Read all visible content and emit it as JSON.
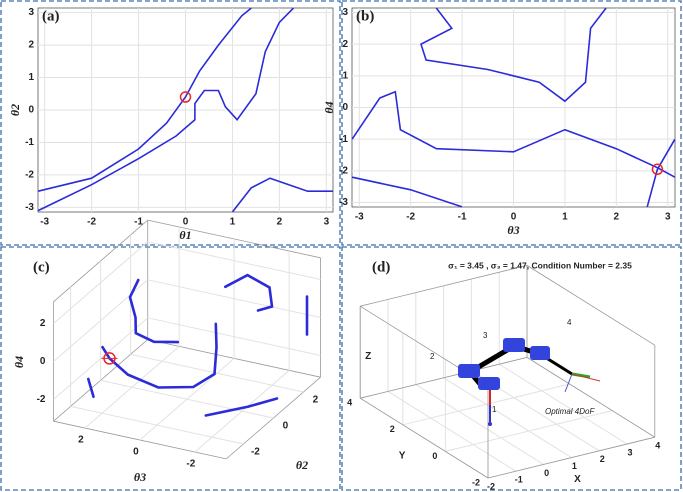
{
  "chart_data": [
    {
      "type": "line",
      "panel_label": "(a)",
      "xlabel": "θ1",
      "ylabel": "θ2",
      "grid": true,
      "color": "#2b2bd9",
      "xlim": [
        -3.1416,
        3.1416
      ],
      "ylim": [
        -3.1416,
        3.1416
      ],
      "xticks": [
        -3,
        -2,
        -1,
        0,
        1,
        2,
        3
      ],
      "yticks": [
        -3,
        -2,
        -1,
        0,
        1,
        2,
        3
      ],
      "series": [
        {
          "x": [
            -3.14,
            -2,
            -1,
            -0.4,
            0,
            0.3,
            0.7,
            1.2,
            1.4
          ],
          "values": [
            -2.5,
            -2.1,
            -1.2,
            -0.4,
            0.4,
            1.2,
            2,
            2.9,
            3.14
          ]
        },
        {
          "x": [
            -3.14,
            -2,
            -1,
            -0.2,
            0.2,
            0.2,
            0.4,
            0.7,
            0.85,
            1.1,
            1.5,
            1.7,
            2,
            2.3
          ],
          "values": [
            -3.1,
            -2.3,
            -1.5,
            -0.8,
            -0.3,
            0.2,
            0.6,
            0.6,
            0.1,
            -0.3,
            0.5,
            1.8,
            2.7,
            3.14
          ]
        },
        {
          "x": [
            1,
            1.4,
            1.8,
            2.2,
            2.6,
            3.14
          ],
          "values": [
            -3.14,
            -2.4,
            -2.1,
            -2.3,
            -2.5,
            -2.5
          ]
        }
      ],
      "highlight": {
        "x": 0,
        "y": 0.4,
        "color": "#e8262a"
      }
    },
    {
      "type": "line",
      "panel_label": "(b)",
      "xlabel": "θ3",
      "ylabel": "θ4",
      "grid": true,
      "color": "#2b2bd9",
      "xlim": [
        -3.1416,
        3.1416
      ],
      "ylim": [
        -3.1416,
        3.1416
      ],
      "xticks": [
        -3,
        -2,
        -1,
        0,
        1,
        2,
        3
      ],
      "yticks": [
        -3,
        -2,
        -1,
        0,
        1,
        2,
        3
      ],
      "series": [
        {
          "x": [
            -1.5,
            -1.2,
            -1.8,
            -1.7,
            -0.5,
            0.5,
            1,
            1.4,
            1.5,
            1.8
          ],
          "values": [
            3.14,
            2.5,
            2,
            1.5,
            1.2,
            0.8,
            0.2,
            0.8,
            2.5,
            3.14
          ]
        },
        {
          "x": [
            -3.14,
            -2.6,
            -2.3,
            -2.2,
            -1.5,
            0,
            1,
            2,
            2.8,
            3.14
          ],
          "values": [
            -1,
            0.3,
            0.5,
            -0.7,
            -1.3,
            -1.4,
            -0.7,
            -1.3,
            -1.9,
            -2.2
          ]
        },
        {
          "x": [
            -3.14,
            -2,
            -1
          ],
          "values": [
            -2.2,
            -2.6,
            -3.14
          ]
        },
        {
          "x": [
            2.6,
            2.8,
            3.14
          ],
          "values": [
            -3.14,
            -1.95,
            -1
          ]
        }
      ],
      "highlight": {
        "x": 2.8,
        "y": -1.95,
        "color": "#e8262a"
      }
    },
    {
      "type": "line3d",
      "panel_label": "(c)",
      "xlabel": "θ3",
      "ylabel": "θ2",
      "zlabel": "θ4",
      "grid": true,
      "color": "#2b2bd9",
      "xlim": [
        -3.1416,
        3.1416
      ],
      "ylim": [
        -3.1416,
        3.1416
      ],
      "zlim": [
        -3.1416,
        3.1416
      ],
      "xticks": [
        2,
        0,
        -2
      ],
      "yticks": [
        -2,
        0,
        2
      ],
      "zticks": [
        -2,
        0,
        2
      ],
      "series": [
        {
          "x": [
            1.5,
            1.8,
            1.6,
            1.7,
            1.2,
            0.5
          ],
          "y": [
            -0.5,
            -0.5,
            -0.5,
            -0.3,
            0,
            0.3
          ],
          "values": [
            3,
            2,
            1,
            0,
            -0.5,
            -0.5
          ]
        },
        {
          "x": [
            2.2,
            2,
            1.5,
            0.5,
            -0.5,
            -1,
            -0.8,
            -0.5
          ],
          "y": [
            -1.6,
            -1.5,
            -1.2,
            -1,
            -0.5,
            0,
            0.5,
            1
          ],
          "values": [
            0,
            -0.6,
            -1.5,
            -2,
            -2,
            -1.5,
            -0.5,
            0.3
          ]
        },
        {
          "x": [
            -0.3,
            -1,
            -1.8,
            -2,
            -1.6
          ],
          "y": [
            2,
            2.2,
            2.2,
            2,
            1.8
          ],
          "values": [
            1.5,
            2.2,
            1.8,
            1,
            0.8
          ]
        },
        {
          "x": [
            -3,
            -3,
            -3
          ],
          "y": [
            2.5,
            2.5,
            2.5
          ],
          "values": [
            1.5,
            0.5,
            -0.5
          ]
        },
        {
          "x": [
            -1.5,
            -2.5,
            -3
          ],
          "y": [
            -1.5,
            -0.5,
            0.5
          ],
          "values": [
            -2.5,
            -2.4,
            -2.5
          ]
        },
        {
          "x": [
            2.5,
            2.2
          ],
          "y": [
            -2,
            -2.2
          ],
          "values": [
            -1.5,
            -2.2
          ]
        }
      ],
      "highlight": {
        "x": 2,
        "y": -1.5,
        "z": -0.6,
        "color": "#e8262a"
      }
    },
    {
      "type": "robot3d",
      "panel_label": "(d)",
      "title": "σ₁ = 3.45 , σ₃ = 1.47, Condition Number = 2.35",
      "xlabel": "X",
      "ylabel": "Y",
      "zlabel": "Z",
      "annotation": "Optimal 4DoF",
      "joint_labels": [
        "1",
        "2",
        "3",
        "4"
      ],
      "grid": true,
      "xlim": [
        -2,
        4
      ],
      "ylim": [
        -2,
        4
      ],
      "zlim": [
        0,
        4.6
      ],
      "xticks": [
        -2,
        -1,
        0,
        1,
        2,
        3,
        4
      ],
      "yticks": [
        -2,
        0,
        2,
        4
      ]
    }
  ]
}
